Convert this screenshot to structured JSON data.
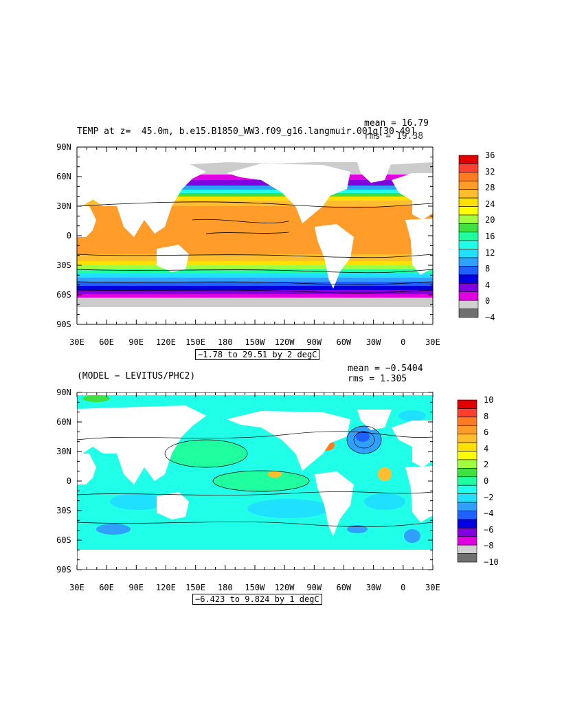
{
  "panel1": {
    "title_left": "TEMP at z=  45.0m, b.e15.B1850_WW3.f09_g16.langmuir.001g[30-49]",
    "mean": "mean = 16.79",
    "rms": "rms = 19.38",
    "contour_info": "−1.78 to 29.51 by 2 degC",
    "colorbar_labels": [
      "36",
      "32",
      "28",
      "24",
      "20",
      "16",
      "12",
      "8",
      "4",
      "0",
      "−4"
    ],
    "colorbar_colors": [
      "#e00000",
      "#ff4030",
      "#ff7b20",
      "#ff9c2a",
      "#ffbe30",
      "#ffe000",
      "#ffff00",
      "#a0ff40",
      "#40e040",
      "#20ffa0",
      "#20ffe8",
      "#20e0ff",
      "#30a0ff",
      "#2060ff",
      "#0000e0",
      "#8000e0",
      "#e000e0",
      "#d0d0d0",
      "#707070"
    ]
  },
  "panel2": {
    "title_left": "(MODEL − LEVITUS/PHC2)",
    "mean": "mean = −0.5404",
    "rms": "rms = 1.305",
    "contour_info": "−6.423 to 9.824 by 1 degC",
    "colorbar_labels": [
      "10",
      "8",
      "6",
      "4",
      "2",
      "0",
      "−2",
      "−4",
      "−6",
      "−8",
      "−10"
    ],
    "colorbar_colors": [
      "#e00000",
      "#ff4030",
      "#ff7b20",
      "#ff9c2a",
      "#ffbe30",
      "#ffe000",
      "#ffff00",
      "#a0ff40",
      "#40e040",
      "#20ffa0",
      "#20ffe8",
      "#20e0ff",
      "#30a0ff",
      "#2060ff",
      "#0000e0",
      "#8000e0",
      "#e000e0",
      "#d0d0d0",
      "#707070"
    ]
  },
  "axes": {
    "lat_labels": [
      "90N",
      "60N",
      "30N",
      "0",
      "30S",
      "60S",
      "90S"
    ],
    "lon_labels": [
      "30E",
      "60E",
      "90E",
      "120E",
      "150E",
      "180",
      "150W",
      "120W",
      "90W",
      "60W",
      "30W",
      "0",
      "30E"
    ]
  }
}
